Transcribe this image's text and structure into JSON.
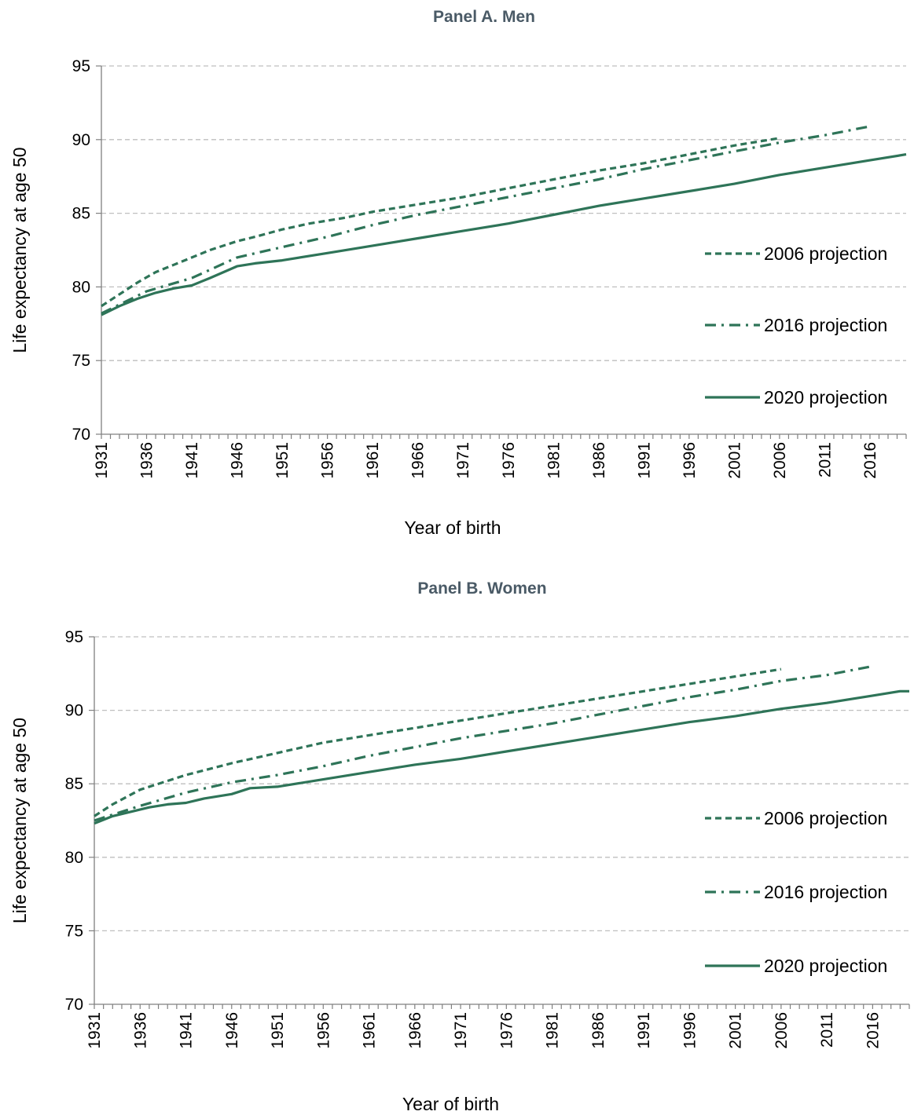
{
  "colors": {
    "series": "#2e7458",
    "title": "#4a5a66",
    "grid": "#bfbfbf",
    "axis": "#808080"
  },
  "chart_data": [
    {
      "type": "line",
      "title": "Panel A. Men",
      "xlabel": "Year of birth",
      "ylabel": "Life expectancy at age 50",
      "ylim": [
        70,
        95
      ],
      "xlim": [
        1931,
        2020
      ],
      "y_ticks": [
        "70",
        "75",
        "80",
        "85",
        "90",
        "95"
      ],
      "x_tick_labels": [
        "1931",
        "1936",
        "1941",
        "1946",
        "1951",
        "1956",
        "1961",
        "1966",
        "1971",
        "1976",
        "1981",
        "1986",
        "1991",
        "1996",
        "2001",
        "2006",
        "2011",
        "2016"
      ],
      "grid": "horizontal dashed",
      "legend_position": "right",
      "series": [
        {
          "name": "2006 projection",
          "style": "dashed",
          "x": [
            1931,
            1933,
            1935,
            1937,
            1939,
            1941,
            1943,
            1946,
            1948,
            1951,
            1954,
            1958,
            1961,
            1966,
            1971,
            1976,
            1981,
            1986,
            1991,
            1996,
            2001,
            2006
          ],
          "y": [
            78.7,
            79.5,
            80.3,
            81.0,
            81.5,
            82.0,
            82.5,
            83.1,
            83.4,
            83.9,
            84.3,
            84.7,
            85.1,
            85.6,
            86.1,
            86.7,
            87.3,
            87.9,
            88.4,
            89.0,
            89.6,
            90.1
          ]
        },
        {
          "name": "2016 projection",
          "style": "dash-dot",
          "x": [
            1931,
            1933,
            1936,
            1941,
            1946,
            1951,
            1956,
            1961,
            1966,
            1971,
            1976,
            1981,
            1986,
            1991,
            1996,
            2001,
            2006,
            2011,
            2016
          ],
          "y": [
            78.2,
            78.8,
            79.7,
            80.6,
            82.0,
            82.7,
            83.4,
            84.2,
            84.9,
            85.5,
            86.1,
            86.7,
            87.3,
            88.0,
            88.6,
            89.2,
            89.8,
            90.3,
            90.9
          ]
        },
        {
          "name": "2020 projection",
          "style": "solid",
          "x": [
            1931,
            1933,
            1935,
            1937,
            1939,
            1941,
            1943,
            1946,
            1948,
            1951,
            1956,
            1961,
            1966,
            1971,
            1976,
            1981,
            1986,
            1991,
            1996,
            2001,
            2006,
            2011,
            2016,
            2020
          ],
          "y": [
            78.1,
            78.7,
            79.2,
            79.6,
            79.9,
            80.1,
            80.6,
            81.4,
            81.6,
            81.8,
            82.3,
            82.8,
            83.3,
            83.8,
            84.3,
            84.9,
            85.5,
            86.0,
            86.5,
            87.0,
            87.6,
            88.1,
            88.6,
            89.0
          ]
        }
      ]
    },
    {
      "type": "line",
      "title": "Panel B. Women",
      "xlabel": "Year of birth",
      "ylabel": "Life expectancy at age 50",
      "ylim": [
        70,
        95
      ],
      "xlim": [
        1931,
        2020
      ],
      "y_ticks": [
        "70",
        "75",
        "80",
        "85",
        "90",
        "95"
      ],
      "x_tick_labels": [
        "1931",
        "1936",
        "1941",
        "1946",
        "1951",
        "1956",
        "1961",
        "1966",
        "1971",
        "1976",
        "1981",
        "1986",
        "1991",
        "1996",
        "2001",
        "2006",
        "2011",
        "2016"
      ],
      "grid": "horizontal dashed",
      "legend_position": "right",
      "series": [
        {
          "name": "2006 projection",
          "style": "dashed",
          "x": [
            1931,
            1933,
            1936,
            1941,
            1946,
            1951,
            1956,
            1961,
            1966,
            1971,
            1976,
            1981,
            1986,
            1991,
            1996,
            2001,
            2006
          ],
          "y": [
            82.8,
            83.6,
            84.6,
            85.6,
            86.4,
            87.1,
            87.8,
            88.3,
            88.8,
            89.3,
            89.8,
            90.3,
            90.8,
            91.3,
            91.8,
            92.3,
            92.8
          ]
        },
        {
          "name": "2016 projection",
          "style": "dash-dot",
          "x": [
            1931,
            1933,
            1936,
            1941,
            1946,
            1951,
            1956,
            1961,
            1966,
            1971,
            1976,
            1981,
            1986,
            1991,
            1996,
            2001,
            2006,
            2011,
            2016
          ],
          "y": [
            82.5,
            82.9,
            83.5,
            84.4,
            85.1,
            85.6,
            86.2,
            86.9,
            87.5,
            88.1,
            88.6,
            89.1,
            89.7,
            90.3,
            90.9,
            91.4,
            92.0,
            92.4,
            93.0
          ]
        },
        {
          "name": "2020 projection",
          "style": "solid",
          "x": [
            1931,
            1933,
            1935,
            1937,
            1939,
            1941,
            1943,
            1946,
            1948,
            1951,
            1956,
            1961,
            1966,
            1971,
            1976,
            1981,
            1986,
            1991,
            1996,
            2001,
            2006,
            2011,
            2016,
            2019,
            2020
          ],
          "y": [
            82.3,
            82.8,
            83.1,
            83.4,
            83.6,
            83.7,
            84.0,
            84.3,
            84.7,
            84.8,
            85.3,
            85.8,
            86.3,
            86.7,
            87.2,
            87.7,
            88.2,
            88.7,
            89.2,
            89.6,
            90.1,
            90.5,
            91.0,
            91.3,
            91.3
          ]
        }
      ]
    }
  ]
}
